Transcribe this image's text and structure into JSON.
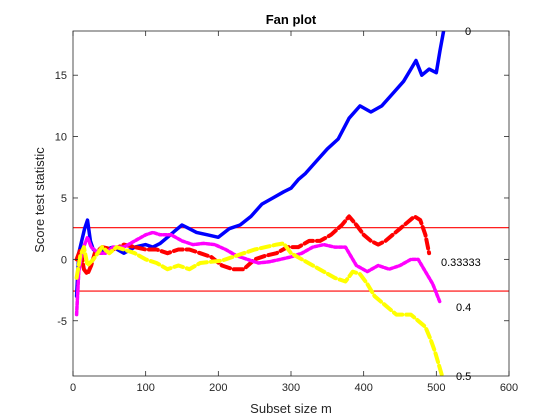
{
  "chart_data": {
    "type": "line",
    "title": "Fan plot",
    "xlabel": "Subset size m",
    "ylabel": "Score test statistic",
    "xlim": [
      0,
      600
    ],
    "ylim": [
      -9.5,
      18.6
    ],
    "xticks": [
      0,
      100,
      200,
      300,
      400,
      500,
      600
    ],
    "yticks": [
      -5,
      0,
      5,
      10,
      15
    ],
    "grid": false,
    "reference_lines": [
      2.58,
      -2.58
    ],
    "reference_line_color": "#ff0000",
    "series": [
      {
        "name": "0",
        "color": "#0000ff",
        "style": "solid",
        "points": [
          [
            5,
            -3
          ],
          [
            8,
            0.5
          ],
          [
            12,
            1.5
          ],
          [
            16,
            2.5
          ],
          [
            20,
            3.2
          ],
          [
            24,
            1.5
          ],
          [
            28,
            0.8
          ],
          [
            35,
            0.5
          ],
          [
            45,
            0.8
          ],
          [
            55,
            1.0
          ],
          [
            70,
            0.5
          ],
          [
            85,
            1.0
          ],
          [
            100,
            1.2
          ],
          [
            110,
            1.0
          ],
          [
            120,
            1.3
          ],
          [
            130,
            1.8
          ],
          [
            140,
            2.3
          ],
          [
            150,
            2.8
          ],
          [
            160,
            2.5
          ],
          [
            170,
            2.2
          ],
          [
            185,
            2.0
          ],
          [
            200,
            1.8
          ],
          [
            215,
            2.5
          ],
          [
            230,
            2.8
          ],
          [
            245,
            3.5
          ],
          [
            260,
            4.5
          ],
          [
            275,
            5.0
          ],
          [
            290,
            5.5
          ],
          [
            300,
            5.8
          ],
          [
            310,
            6.5
          ],
          [
            320,
            7.0
          ],
          [
            335,
            8.0
          ],
          [
            350,
            9.0
          ],
          [
            365,
            9.8
          ],
          [
            380,
            11.5
          ],
          [
            395,
            12.5
          ],
          [
            410,
            12.0
          ],
          [
            425,
            12.5
          ],
          [
            440,
            13.5
          ],
          [
            455,
            14.5
          ],
          [
            465,
            15.5
          ],
          [
            472,
            16.2
          ],
          [
            480,
            15.0
          ],
          [
            490,
            15.5
          ],
          [
            500,
            15.2
          ],
          [
            505,
            17.0
          ],
          [
            510,
            18.6
          ]
        ]
      },
      {
        "name": "0.33333",
        "color": "#ff0000",
        "style": "dashed",
        "points": [
          [
            5,
            0
          ],
          [
            10,
            0.8
          ],
          [
            15,
            -0.8
          ],
          [
            20,
            -1.2
          ],
          [
            25,
            -0.5
          ],
          [
            30,
            0.5
          ],
          [
            40,
            1.0
          ],
          [
            55,
            0.8
          ],
          [
            70,
            1.2
          ],
          [
            85,
            1.0
          ],
          [
            100,
            0.8
          ],
          [
            115,
            0.8
          ],
          [
            130,
            0.5
          ],
          [
            145,
            0.8
          ],
          [
            160,
            0.8
          ],
          [
            175,
            0.5
          ],
          [
            190,
            0.2
          ],
          [
            205,
            -0.5
          ],
          [
            220,
            -0.8
          ],
          [
            235,
            -0.8
          ],
          [
            250,
            0
          ],
          [
            265,
            0.3
          ],
          [
            280,
            0.5
          ],
          [
            295,
            1.0
          ],
          [
            310,
            1.0
          ],
          [
            325,
            1.5
          ],
          [
            340,
            1.5
          ],
          [
            355,
            2.0
          ],
          [
            370,
            2.8
          ],
          [
            380,
            3.5
          ],
          [
            390,
            2.8
          ],
          [
            400,
            2.0
          ],
          [
            410,
            1.5
          ],
          [
            420,
            1.2
          ],
          [
            430,
            1.5
          ],
          [
            440,
            2.0
          ],
          [
            450,
            2.5
          ],
          [
            460,
            3.0
          ],
          [
            470,
            3.5
          ],
          [
            478,
            3.2
          ],
          [
            485,
            2.0
          ],
          [
            490,
            0.5
          ]
        ]
      },
      {
        "name": "0.4",
        "color": "#ff00ff",
        "style": "dotted",
        "points": [
          [
            5,
            -4.5
          ],
          [
            8,
            -1.0
          ],
          [
            12,
            0.5
          ],
          [
            16,
            1.2
          ],
          [
            20,
            1.8
          ],
          [
            25,
            1.0
          ],
          [
            35,
            0.5
          ],
          [
            45,
            0.5
          ],
          [
            55,
            1.0
          ],
          [
            70,
            1.0
          ],
          [
            85,
            1.5
          ],
          [
            100,
            2.0
          ],
          [
            110,
            2.2
          ],
          [
            120,
            2.0
          ],
          [
            135,
            2.0
          ],
          [
            150,
            1.5
          ],
          [
            165,
            1.2
          ],
          [
            180,
            1.3
          ],
          [
            195,
            1.2
          ],
          [
            210,
            0.8
          ],
          [
            225,
            0.3
          ],
          [
            240,
            0
          ],
          [
            255,
            -0.3
          ],
          [
            270,
            -0.2
          ],
          [
            285,
            0
          ],
          [
            300,
            0.2
          ],
          [
            315,
            0.5
          ],
          [
            330,
            1.0
          ],
          [
            345,
            1.2
          ],
          [
            360,
            1.0
          ],
          [
            375,
            1.0
          ],
          [
            390,
            -0.5
          ],
          [
            405,
            -1.0
          ],
          [
            420,
            -0.5
          ],
          [
            435,
            -0.8
          ],
          [
            450,
            -0.5
          ],
          [
            465,
            0
          ],
          [
            475,
            0
          ],
          [
            485,
            -1.0
          ],
          [
            495,
            -2.0
          ],
          [
            505,
            -3.5
          ]
        ]
      },
      {
        "name": "0.5",
        "color": "#ffff00",
        "style": "dashed",
        "points": [
          [
            5,
            -1.5
          ],
          [
            10,
            0.3
          ],
          [
            15,
            1.0
          ],
          [
            20,
            -0.5
          ],
          [
            28,
            0
          ],
          [
            40,
            1.0
          ],
          [
            50,
            0.5
          ],
          [
            60,
            1.0
          ],
          [
            70,
            0.8
          ],
          [
            85,
            0.5
          ],
          [
            100,
            0
          ],
          [
            115,
            -0.3
          ],
          [
            130,
            -0.8
          ],
          [
            145,
            -0.5
          ],
          [
            160,
            -0.8
          ],
          [
            175,
            -0.3
          ],
          [
            190,
            -0.2
          ],
          [
            205,
            -0.1
          ],
          [
            220,
            0.2
          ],
          [
            235,
            0.5
          ],
          [
            250,
            0.8
          ],
          [
            265,
            1.0
          ],
          [
            280,
            1.2
          ],
          [
            290,
            1.3
          ],
          [
            300,
            0.5
          ],
          [
            315,
            0
          ],
          [
            330,
            -0.5
          ],
          [
            345,
            -1.0
          ],
          [
            360,
            -1.5
          ],
          [
            375,
            -1.8
          ],
          [
            385,
            -1.0
          ],
          [
            395,
            -1.2
          ],
          [
            405,
            -2.0
          ],
          [
            415,
            -3.0
          ],
          [
            425,
            -3.5
          ],
          [
            435,
            -4.0
          ],
          [
            445,
            -4.5
          ],
          [
            455,
            -4.5
          ],
          [
            465,
            -4.5
          ],
          [
            475,
            -5.0
          ],
          [
            485,
            -5.5
          ],
          [
            492,
            -6.5
          ],
          [
            498,
            -7.5
          ],
          [
            503,
            -8.5
          ],
          [
            508,
            -9.5
          ]
        ]
      }
    ],
    "series_label_values": [
      {
        "text": "0",
        "y": 18.6
      },
      {
        "text": "0.33333",
        "y": -0.2
      },
      {
        "text": "0.4",
        "y": -3.9
      },
      {
        "text": "0.5",
        "y": -9.5
      }
    ]
  }
}
